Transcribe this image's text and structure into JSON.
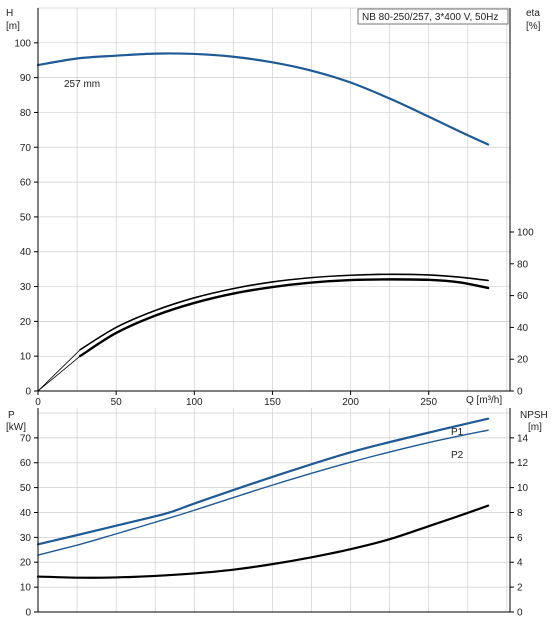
{
  "colors": {
    "head_curve": "#1f5a96",
    "power_curve": "#1f5a96",
    "efficiency_curve": "#000000",
    "npsh_curve": "#000000",
    "axis": "#000000",
    "grid": "#cfcfcf"
  },
  "chart_data": [
    {
      "type": "line",
      "title": "NB 80-250/257, 3*400 V, 50Hz",
      "left_axis": {
        "label_top": "H",
        "label_unit": "[m]",
        "ticks": [
          0,
          10,
          20,
          30,
          40,
          50,
          60,
          70,
          80,
          90,
          100
        ],
        "ylim": [
          0,
          110
        ]
      },
      "right_axis": {
        "label_top": "eta",
        "label_unit": "[%]",
        "ticks": [
          0,
          20,
          40,
          60,
          80,
          100
        ],
        "ylim": [
          0,
          100
        ]
      },
      "x_axis": {
        "label": "Q [m³/h]",
        "ticks": [
          0,
          50,
          100,
          150,
          200,
          250
        ],
        "xlim": [
          0,
          302
        ]
      },
      "grid": true,
      "series": [
        {
          "name": "257 mm",
          "axis": "left",
          "x": [
            0,
            25,
            50,
            75,
            100,
            125,
            150,
            175,
            200,
            225,
            250,
            270,
            288
          ],
          "y": [
            93.6,
            95.5,
            96.3,
            96.9,
            96.8,
            96.0,
            94.4,
            92.0,
            88.6,
            84.0,
            78.8,
            74.5,
            70.8
          ]
        },
        {
          "name": "",
          "axis": "right",
          "x": [
            27,
            50,
            75,
            100,
            125,
            150,
            175,
            200,
            225,
            250,
            270,
            288
          ],
          "y": [
            26,
            40,
            50.6,
            58.6,
            64.4,
            68.6,
            71.3,
            72.8,
            73.4,
            73.0,
            71.6,
            69.5
          ]
        },
        {
          "name": "",
          "axis": "right",
          "x": [
            27,
            50,
            75,
            100,
            125,
            150,
            175,
            200,
            225,
            250,
            270,
            288
          ],
          "y": [
            22,
            36.5,
            47.4,
            55.4,
            61.3,
            65.4,
            68.2,
            69.8,
            70.2,
            69.9,
            68.3,
            64.8
          ]
        },
        {
          "name": "",
          "axis": "right",
          "x": [
            0,
            27
          ],
          "y": [
            0,
            26
          ],
          "thin": true
        },
        {
          "name": "",
          "axis": "right",
          "x": [
            0,
            27
          ],
          "y": [
            0,
            22
          ],
          "thin": true
        }
      ]
    },
    {
      "type": "line",
      "left_axis": {
        "label_top": "P",
        "label_unit": "[kW]",
        "ticks": [
          0,
          10,
          20,
          30,
          40,
          50,
          60,
          70
        ],
        "ylim": [
          0,
          82
        ]
      },
      "right_axis": {
        "label_top": "NPSH",
        "label_unit": "[m]",
        "ticks": [
          0,
          2,
          4,
          6,
          8,
          10,
          12,
          14
        ],
        "ylim": [
          0,
          16.4
        ]
      },
      "x_axis": {
        "label": "",
        "ticks": [],
        "xlim": [
          0,
          302
        ]
      },
      "grid": true,
      "series": [
        {
          "name": "P1",
          "axis": "left",
          "x": [
            0,
            27,
            50,
            82,
            100,
            150,
            200,
            250,
            288
          ],
          "y": [
            27.2,
            31.2,
            34.7,
            39.6,
            43.6,
            54.3,
            64.2,
            72.1,
            77.7
          ]
        },
        {
          "name": "P2",
          "axis": "left",
          "x": [
            0,
            27,
            50,
            82,
            100,
            150,
            200,
            250,
            288
          ],
          "y": [
            22.9,
            27.2,
            31.4,
            37.4,
            40.9,
            51.0,
            60.2,
            68.1,
            73.1
          ]
        },
        {
          "name": "",
          "axis": "right",
          "x": [
            0,
            27,
            50,
            75,
            100,
            125,
            150,
            175,
            200,
            225,
            250,
            270,
            288
          ],
          "y": [
            2.85,
            2.76,
            2.78,
            2.9,
            3.1,
            3.4,
            3.85,
            4.4,
            5.05,
            5.85,
            6.9,
            7.75,
            8.55
          ]
        }
      ]
    }
  ]
}
